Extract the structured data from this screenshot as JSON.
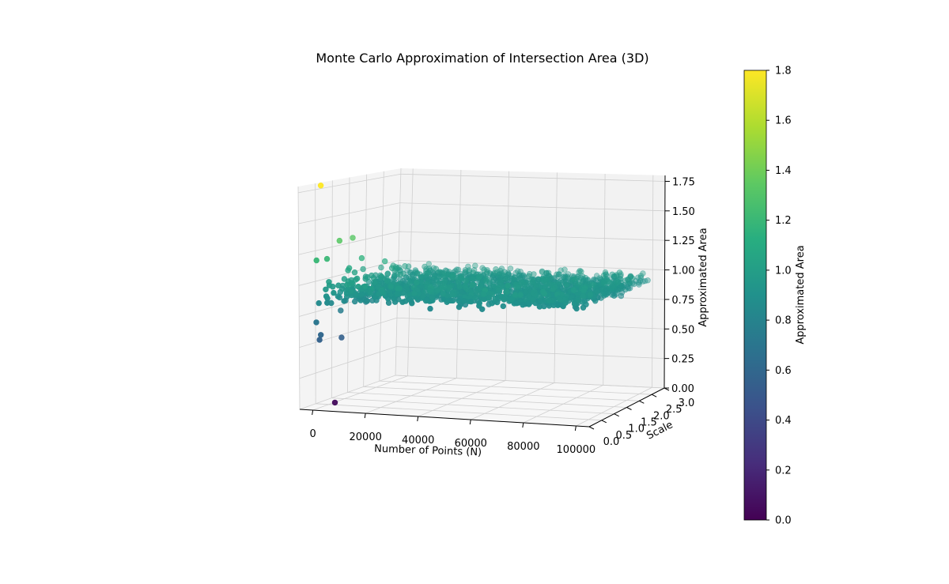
{
  "chart_data": {
    "type": "scatter",
    "projection": "3d",
    "title": "Monte Carlo Approximation of Intersection Area (3D)",
    "xlabel": "Number of Points (N)",
    "ylabel": "Scale",
    "zlabel": "Approximated Area",
    "xlim": [
      -5000,
      105000
    ],
    "ylim": [
      0.0,
      3.0
    ],
    "zlim": [
      0.0,
      1.8
    ],
    "xticks": [
      "0",
      "20000",
      "40000",
      "60000",
      "80000",
      "100000"
    ],
    "yticks": [
      "0.0",
      "0.5",
      "1.0",
      "1.5",
      "2.0",
      "2.5",
      "3.0"
    ],
    "zticks": [
      "0.00",
      "0.25",
      "0.50",
      "0.75",
      "1.00",
      "1.25",
      "1.50",
      "1.75"
    ],
    "grid": true,
    "colormap": "viridis",
    "colorbar": {
      "label": "Approximated Area",
      "range": [
        0.0,
        1.8
      ],
      "ticks": [
        "0.0",
        "0.2",
        "0.4",
        "0.6",
        "0.8",
        "1.0",
        "1.2",
        "1.4",
        "1.6",
        "1.8"
      ]
    },
    "main_cloud": {
      "description_value_mean": 0.92,
      "value_spread": 0.03,
      "x_range": [
        100,
        100000
      ],
      "y_range": [
        0.1,
        3.0
      ],
      "count": 1500
    },
    "outliers": [
      {
        "x": 1000,
        "y": 0.2,
        "z": 1.8
      },
      {
        "x": 3000,
        "y": 0.6,
        "z": 1.33
      },
      {
        "x": 3000,
        "y": 1.0,
        "z": 1.33
      },
      {
        "x": 500,
        "y": 0.1,
        "z": 1.2
      },
      {
        "x": 2000,
        "y": 0.3,
        "z": 1.2
      },
      {
        "x": 4000,
        "y": 1.2,
        "z": 1.15
      },
      {
        "x": 8000,
        "y": 1.6,
        "z": 1.1
      },
      {
        "x": 300,
        "y": 0.1,
        "z": 0.7
      },
      {
        "x": 1500,
        "y": 0.1,
        "z": 0.56
      },
      {
        "x": 5000,
        "y": 0.5,
        "z": 0.55
      },
      {
        "x": 2000,
        "y": 0.1,
        "z": 0.6
      },
      {
        "x": 6000,
        "y": 0.2,
        "z": 0.05
      }
    ]
  }
}
